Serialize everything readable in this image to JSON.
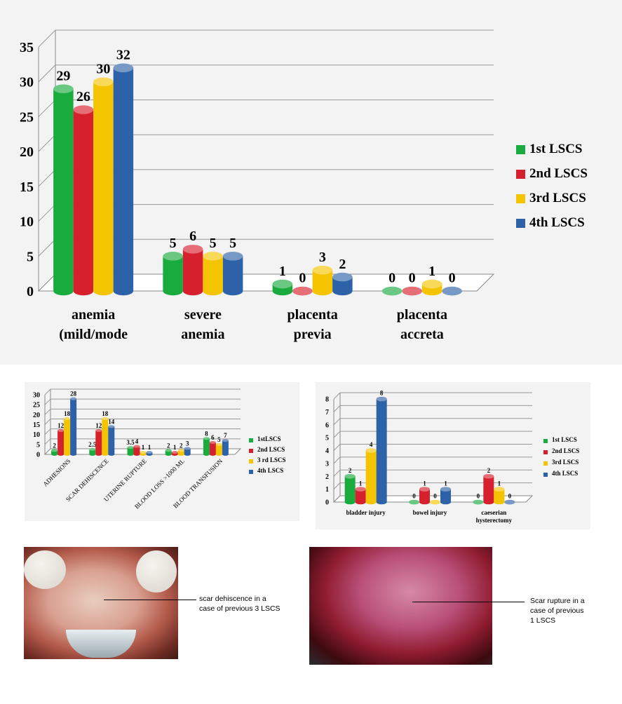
{
  "chart_data": [
    {
      "type": "bar",
      "series_colors": [
        "#1aab3e",
        "#d7202e",
        "#f5c400",
        "#2e62a8"
      ],
      "categories": [
        [
          "anemia",
          "(mild/mode"
        ],
        [
          "severe",
          "anemia"
        ],
        [
          "placenta",
          "previa"
        ],
        [
          "placenta",
          "accreta"
        ]
      ],
      "series": [
        {
          "name": "1st LSCS",
          "values": [
            29,
            5,
            1,
            0
          ]
        },
        {
          "name": "2nd LSCS",
          "values": [
            26,
            6,
            0,
            0
          ]
        },
        {
          "name": "3rd LSCS",
          "values": [
            30,
            5,
            3,
            1
          ]
        },
        {
          "name": "4th LSCS",
          "values": [
            32,
            5,
            2,
            0
          ]
        }
      ],
      "yticks": [
        "0",
        "5",
        "10",
        "15",
        "20",
        "25",
        "30",
        "35"
      ],
      "ylim": [
        0,
        35
      ],
      "grid": true,
      "legend": "right"
    },
    {
      "type": "bar",
      "series_colors": [
        "#1aab3e",
        "#d7202e",
        "#f5c400",
        "#2e62a8"
      ],
      "categories": [
        "ADHESIONS",
        "SCAR DEHISCENCE",
        "UTERINE RUPTURE",
        "BLOOD LOSS >1000 ML",
        "BLOOD TRANSFUSION"
      ],
      "series": [
        {
          "name": "1stLSCS",
          "values": [
            2,
            2.5,
            3.5,
            2,
            8
          ]
        },
        {
          "name": "2nd LSCS",
          "values": [
            12,
            12,
            4,
            1,
            6
          ]
        },
        {
          "name": "3 rd LSCS",
          "values": [
            18,
            18,
            1,
            2,
            5
          ]
        },
        {
          "name": "4th LSCS",
          "values": [
            28,
            14,
            1,
            3,
            7
          ]
        }
      ],
      "value_labels": [
        [
          "2",
          "12",
          "18",
          "28"
        ],
        [
          "2.5",
          "12",
          "18",
          "14"
        ],
        [
          "3.5",
          "4",
          "1",
          "1"
        ],
        [
          "2",
          "1",
          "2",
          "3"
        ],
        [
          "8",
          "6",
          "5",
          "7"
        ]
      ],
      "yticks": [
        "0",
        "5",
        "10",
        "15",
        "20",
        "25",
        "30"
      ],
      "ylim": [
        0,
        30
      ],
      "grid": true,
      "legend": "right"
    },
    {
      "type": "bar",
      "series_colors": [
        "#1aab3e",
        "#d7202e",
        "#f5c400",
        "#2e62a8"
      ],
      "categories": [
        [
          "bladder injury"
        ],
        [
          "bowel injury"
        ],
        [
          "caeserian",
          "hysterectomy"
        ]
      ],
      "series": [
        {
          "name": "1st LSCS",
          "values": [
            2,
            0,
            0
          ]
        },
        {
          "name": "2nd LSCS",
          "values": [
            1,
            1,
            2
          ]
        },
        {
          "name": "3rd LSCS",
          "values": [
            4,
            0,
            1
          ]
        },
        {
          "name": "4th LSCS",
          "values": [
            8,
            1,
            0
          ]
        }
      ],
      "yticks": [
        "0",
        "1",
        "2",
        "3",
        "4",
        "5",
        "6",
        "7",
        "8"
      ],
      "ylim": [
        0,
        8
      ],
      "grid": true,
      "legend": "right"
    }
  ],
  "photos": [
    {
      "caption": "scar dehiscence in a\ncase of previous 3 LSCS"
    },
    {
      "caption": "Scar rupture in a\ncase of previous\n1 LSCS"
    }
  ]
}
